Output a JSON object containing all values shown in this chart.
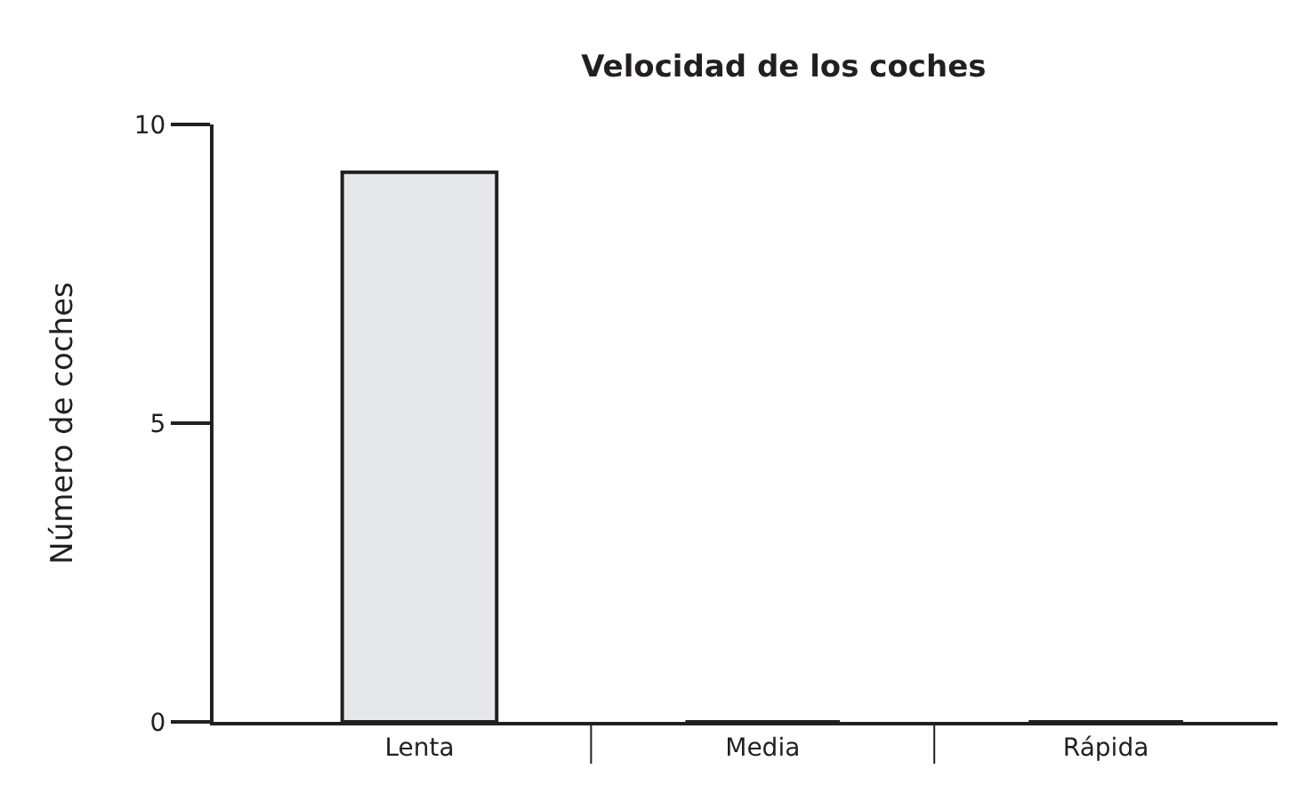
{
  "chart_data": {
    "type": "bar",
    "title": "Velocidad de los coches",
    "ylabel": "Número de coches",
    "categories": [
      "Lenta",
      "Media",
      "Rápida"
    ],
    "values": [
      9.2,
      0,
      0
    ],
    "color": "#e6e7e8",
    "ylim": [
      0,
      10
    ],
    "yticks": [
      0,
      5,
      10
    ]
  }
}
